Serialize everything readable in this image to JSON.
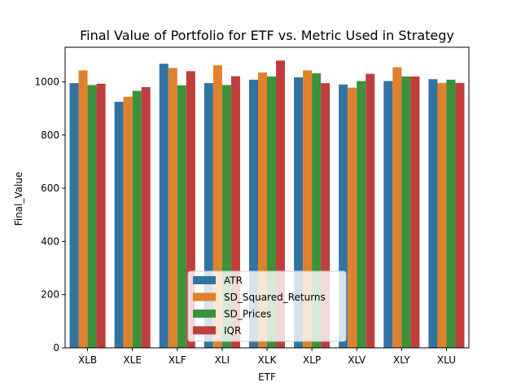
{
  "chart_data": {
    "type": "bar",
    "title": "Final Value of Portfolio for ETF vs. Metric Used in Strategy",
    "xlabel": "ETF",
    "ylabel": "Final_Value",
    "categories": [
      "XLB",
      "XLE",
      "XLF",
      "XLI",
      "XLK",
      "XLP",
      "XLV",
      "XLY",
      "XLU"
    ],
    "ylim": [
      0,
      1130
    ],
    "yticks": [
      0,
      200,
      400,
      600,
      800,
      1000
    ],
    "grid": false,
    "legend_position": "lower-center",
    "series": [
      {
        "name": "ATR",
        "color": "#3274a1",
        "values": [
          995,
          925,
          1068,
          995,
          1008,
          1017,
          990,
          1003,
          1010
        ]
      },
      {
        "name": "SD_Squared_Returns",
        "color": "#e1812c",
        "values": [
          1043,
          944,
          1052,
          1062,
          1035,
          1043,
          978,
          1055,
          996
        ]
      },
      {
        "name": "SD_Prices",
        "color": "#3a923a",
        "values": [
          988,
          966,
          987,
          988,
          1020,
          1032,
          1003,
          1020,
          1008
        ]
      },
      {
        "name": "IQR",
        "color": "#c03d3e",
        "values": [
          993,
          980,
          1040,
          1021,
          1080,
          995,
          1030,
          1020,
          996
        ]
      }
    ]
  }
}
